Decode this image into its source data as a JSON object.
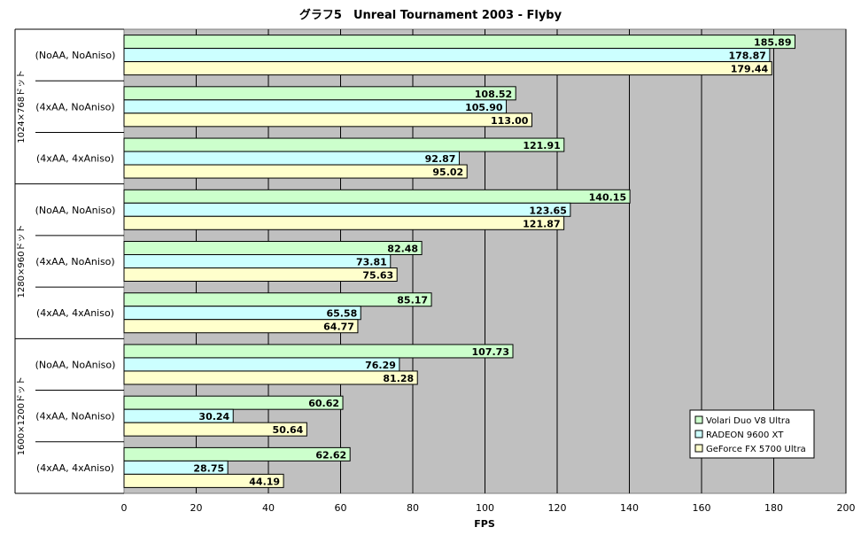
{
  "chart_data": {
    "type": "bar",
    "orientation": "horizontal",
    "title": "グラフ5　Unreal Tournament 2003 - Flyby",
    "xlabel": "FPS",
    "ylabel": "",
    "xlim": [
      0,
      200
    ],
    "x_ticks": [
      0,
      20,
      40,
      60,
      80,
      100,
      120,
      140,
      160,
      180,
      200
    ],
    "grid": true,
    "legend_position": "bottom-right",
    "groups": [
      {
        "label": "1024×768ドット",
        "categories": [
          "(NoAA, NoAniso)",
          "(4xAA, NoAniso)",
          "(4xAA, 4xAniso)"
        ]
      },
      {
        "label": "1280×960ドット",
        "categories": [
          "(NoAA, NoAniso)",
          "(4xAA, NoAniso)",
          "(4xAA, 4xAniso)"
        ]
      },
      {
        "label": "1600×1200ドット",
        "categories": [
          "(NoAA, NoAniso)",
          "(4xAA, NoAniso)",
          "(4xAA, 4xAniso)"
        ]
      }
    ],
    "series": [
      {
        "name": "Volari Duo V8 Ultra",
        "color": "#ccffcc",
        "values": [
          185.89,
          108.52,
          121.91,
          140.15,
          82.48,
          85.17,
          107.73,
          60.62,
          62.62
        ],
        "labels": [
          "185.89",
          "108.52",
          "121.91",
          "140.15",
          "82.48",
          "85.17",
          "107.73",
          "60.62",
          "62.62"
        ]
      },
      {
        "name": "RADEON 9600 XT",
        "color": "#ccffff",
        "values": [
          178.87,
          105.9,
          92.87,
          123.65,
          73.81,
          65.58,
          76.29,
          30.24,
          28.75
        ],
        "labels": [
          "178.87",
          "105.90",
          "92.87",
          "123.65",
          "73.81",
          "65.58",
          "76.29",
          "30.24",
          "28.75"
        ]
      },
      {
        "name": "GeForce FX 5700 Ultra",
        "color": "#ffffcc",
        "values": [
          179.44,
          113.0,
          95.02,
          121.87,
          75.63,
          64.77,
          81.28,
          50.64,
          44.19
        ],
        "labels": [
          "179.44",
          "113.00",
          "95.02",
          "121.87",
          "75.63",
          "64.77",
          "81.28",
          "50.64",
          "44.19"
        ]
      }
    ],
    "plot_background": "#c0c0c0"
  }
}
